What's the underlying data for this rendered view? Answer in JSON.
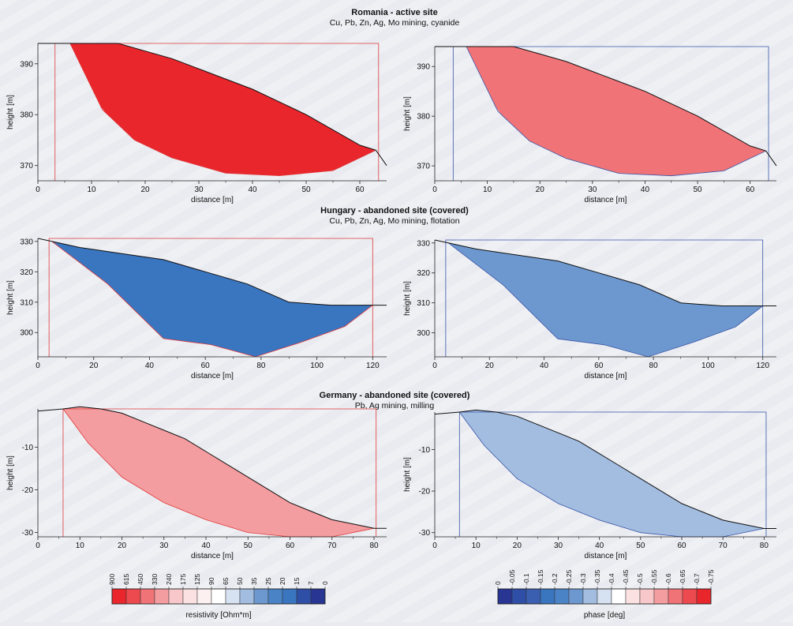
{
  "colors": {
    "red_scale": [
      "#e8262c",
      "#ec4a4e",
      "#f07377",
      "#f49da0",
      "#f8c7c9",
      "#fbe1e2"
    ],
    "blue_scale": [
      "#283593",
      "#2f4ea5",
      "#3a75c0",
      "#6d98cf",
      "#a3bde0",
      "#d6e1f1"
    ],
    "white": "#ffffff",
    "resistivity_outline": "#e03a3a",
    "phase_outline": "#3955a8"
  },
  "chart_data": [
    {
      "type": "heatmap",
      "panel": "romania-resistivity",
      "title": "Romania - active site",
      "subtitle": "Cu, Pb, Zn, Ag, Mo mining, cyanide",
      "xlabel": "distance [m]",
      "ylabel": "height [m]",
      "xlim": [
        0,
        65
      ],
      "ylim": [
        367,
        394
      ],
      "xticks": [
        "0",
        "10",
        "20",
        "30",
        "40",
        "50",
        "60"
      ],
      "yticks": [
        "370",
        "380",
        "390"
      ],
      "measure": "resistivity",
      "surface": [
        [
          0,
          394
        ],
        [
          6,
          394
        ],
        [
          15,
          394
        ],
        [
          20,
          392.5
        ],
        [
          25,
          391
        ],
        [
          30,
          389
        ],
        [
          35,
          387
        ],
        [
          40,
          385
        ],
        [
          45,
          382.5
        ],
        [
          50,
          380
        ],
        [
          55,
          377
        ],
        [
          60,
          374
        ],
        [
          63,
          373
        ],
        [
          65,
          370
        ]
      ],
      "bottom": [
        [
          6,
          394
        ],
        [
          12,
          381
        ],
        [
          18,
          375
        ],
        [
          25,
          371.5
        ],
        [
          35,
          368.5
        ],
        [
          45,
          368
        ],
        [
          55,
          369
        ],
        [
          63,
          373
        ]
      ],
      "frame": [
        3.2,
        63.5
      ]
    },
    {
      "type": "heatmap",
      "panel": "romania-phase",
      "xlabel": "distance [m]",
      "ylabel": "height [m]",
      "xlim": [
        0,
        65
      ],
      "ylim": [
        367,
        394
      ],
      "xticks": [
        "0",
        "10",
        "20",
        "30",
        "40",
        "50",
        "60"
      ],
      "yticks": [
        "370",
        "380",
        "390"
      ],
      "measure": "phase",
      "surface": [
        [
          0,
          394
        ],
        [
          6,
          394
        ],
        [
          15,
          394
        ],
        [
          20,
          392.5
        ],
        [
          25,
          391
        ],
        [
          30,
          389
        ],
        [
          35,
          387
        ],
        [
          40,
          385
        ],
        [
          45,
          382.5
        ],
        [
          50,
          380
        ],
        [
          55,
          377
        ],
        [
          60,
          374
        ],
        [
          63,
          373
        ],
        [
          65,
          370
        ]
      ],
      "bottom": [
        [
          6,
          394
        ],
        [
          12,
          381
        ],
        [
          18,
          375
        ],
        [
          25,
          371.5
        ],
        [
          35,
          368.5
        ],
        [
          45,
          368
        ],
        [
          55,
          369
        ],
        [
          63,
          373
        ]
      ],
      "frame": [
        3.5,
        63.5
      ]
    },
    {
      "type": "heatmap",
      "panel": "hungary-resistivity",
      "title": "Hungary - abandoned site (covered)",
      "subtitle": "Cu, Pb, Zn, Ag, Mo mining, flotation",
      "xlabel": "distance [m]",
      "ylabel": "height [m]",
      "xlim": [
        0,
        125
      ],
      "ylim": [
        292,
        331
      ],
      "xticks": [
        "0",
        "20",
        "40",
        "60",
        "80",
        "100",
        "120"
      ],
      "yticks": [
        "300",
        "310",
        "320",
        "330"
      ],
      "measure": "resistivity",
      "surface": [
        [
          0,
          331
        ],
        [
          5,
          330
        ],
        [
          15,
          328
        ],
        [
          30,
          326
        ],
        [
          45,
          324
        ],
        [
          60,
          320
        ],
        [
          75,
          316
        ],
        [
          90,
          310
        ],
        [
          105,
          309
        ],
        [
          120,
          309
        ],
        [
          125,
          309
        ]
      ],
      "bottom": [
        [
          5,
          330
        ],
        [
          25,
          316
        ],
        [
          45,
          298
        ],
        [
          62,
          296
        ],
        [
          78,
          292
        ],
        [
          95,
          297
        ],
        [
          110,
          302
        ],
        [
          120,
          309
        ]
      ],
      "frame": [
        4,
        120
      ]
    },
    {
      "type": "heatmap",
      "panel": "hungary-phase",
      "xlabel": "distance [m]",
      "ylabel": "height [m]",
      "xlim": [
        0,
        125
      ],
      "ylim": [
        292,
        331
      ],
      "xticks": [
        "0",
        "20",
        "40",
        "60",
        "80",
        "100",
        "120"
      ],
      "yticks": [
        "300",
        "310",
        "320",
        "330"
      ],
      "measure": "phase",
      "surface": [
        [
          0,
          331
        ],
        [
          5,
          330
        ],
        [
          15,
          328
        ],
        [
          30,
          326
        ],
        [
          45,
          324
        ],
        [
          60,
          320
        ],
        [
          75,
          316
        ],
        [
          90,
          310
        ],
        [
          105,
          309
        ],
        [
          120,
          309
        ],
        [
          125,
          309
        ]
      ],
      "bottom": [
        [
          5,
          330
        ],
        [
          25,
          316
        ],
        [
          45,
          298
        ],
        [
          62,
          296
        ],
        [
          78,
          292
        ],
        [
          95,
          297
        ],
        [
          110,
          302
        ],
        [
          120,
          309
        ]
      ],
      "frame": [
        4,
        120
      ]
    },
    {
      "type": "heatmap",
      "panel": "germany-resistivity",
      "title": "Germany - abandoned site (covered)",
      "subtitle": "Pb, Ag mining, milling",
      "xlabel": "distance [m]",
      "ylabel": "height [m]",
      "xlim": [
        0,
        83
      ],
      "ylim": [
        -31,
        -1
      ],
      "xticks": [
        "0",
        "10",
        "20",
        "30",
        "40",
        "50",
        "60",
        "70",
        "80"
      ],
      "yticks": [
        "-10",
        "-20",
        "-30"
      ],
      "measure": "resistivity",
      "surface": [
        [
          0,
          -1.5
        ],
        [
          6,
          -1
        ],
        [
          10,
          -0.5
        ],
        [
          15,
          -1
        ],
        [
          20,
          -2
        ],
        [
          25,
          -4
        ],
        [
          30,
          -6
        ],
        [
          35,
          -8
        ],
        [
          40,
          -11
        ],
        [
          45,
          -14
        ],
        [
          50,
          -17
        ],
        [
          55,
          -20
        ],
        [
          60,
          -23
        ],
        [
          65,
          -25
        ],
        [
          70,
          -27
        ],
        [
          75,
          -28
        ],
        [
          80,
          -29
        ],
        [
          83,
          -29
        ]
      ],
      "bottom": [
        [
          6,
          -1
        ],
        [
          12,
          -9
        ],
        [
          20,
          -17
        ],
        [
          30,
          -23
        ],
        [
          40,
          -27
        ],
        [
          50,
          -30
        ],
        [
          60,
          -31
        ],
        [
          70,
          -31
        ],
        [
          80,
          -29
        ]
      ],
      "frame": [
        6,
        80.5
      ]
    },
    {
      "type": "heatmap",
      "panel": "germany-phase",
      "xlabel": "distance [m]",
      "ylabel": "height [m]",
      "xlim": [
        0,
        83
      ],
      "ylim": [
        -31,
        -1
      ],
      "xticks": [
        "0",
        "10",
        "20",
        "30",
        "40",
        "50",
        "60",
        "70",
        "80"
      ],
      "yticks": [
        "-10",
        "-20",
        "-30"
      ],
      "measure": "phase",
      "surface": [
        [
          0,
          -1.5
        ],
        [
          6,
          -1
        ],
        [
          10,
          -0.5
        ],
        [
          15,
          -1
        ],
        [
          20,
          -2
        ],
        [
          25,
          -4
        ],
        [
          30,
          -6
        ],
        [
          35,
          -8
        ],
        [
          40,
          -11
        ],
        [
          45,
          -14
        ],
        [
          50,
          -17
        ],
        [
          55,
          -20
        ],
        [
          60,
          -23
        ],
        [
          65,
          -25
        ],
        [
          70,
          -27
        ],
        [
          75,
          -28
        ],
        [
          80,
          -29
        ],
        [
          83,
          -29
        ]
      ],
      "bottom": [
        [
          6,
          -1
        ],
        [
          12,
          -9
        ],
        [
          20,
          -17
        ],
        [
          30,
          -23
        ],
        [
          40,
          -27
        ],
        [
          50,
          -30
        ],
        [
          60,
          -31
        ],
        [
          70,
          -31
        ],
        [
          80,
          -29
        ]
      ],
      "frame": [
        6,
        80.5
      ]
    }
  ],
  "legends": {
    "resistivity": {
      "label": "resistivity [Ohm*m]",
      "ticks": [
        "900",
        "615",
        "450",
        "330",
        "240",
        "175",
        "125",
        "90",
        "65",
        "50",
        "35",
        "25",
        "20",
        "15",
        "7",
        "0"
      ],
      "colors": [
        "#e8262c",
        "#ec4a4e",
        "#f07377",
        "#f49da0",
        "#f8c7c9",
        "#fbe1e2",
        "#fdf0f0",
        "#ffffff",
        "#d6e1f1",
        "#a3bde0",
        "#6d98cf",
        "#4a83c6",
        "#3a75c0",
        "#2f4ea5",
        "#283593"
      ]
    },
    "phase": {
      "label": "phase [deg]",
      "ticks": [
        "0",
        "-0.05",
        "-0.1",
        "-0.15",
        "-0.2",
        "-0.25",
        "-0.3",
        "-0.35",
        "-0.4",
        "-0.45",
        "-0.5",
        "-0.55",
        "-0.6",
        "-0.65",
        "-0.7",
        "-0.75"
      ],
      "colors": [
        "#283593",
        "#2f4ea5",
        "#3a5fb0",
        "#3a75c0",
        "#4a83c6",
        "#6d98cf",
        "#a3bde0",
        "#d6e1f1",
        "#ffffff",
        "#fbe1e2",
        "#f8c7c9",
        "#f49da0",
        "#f07377",
        "#ec4a4e",
        "#e8262c"
      ]
    }
  }
}
